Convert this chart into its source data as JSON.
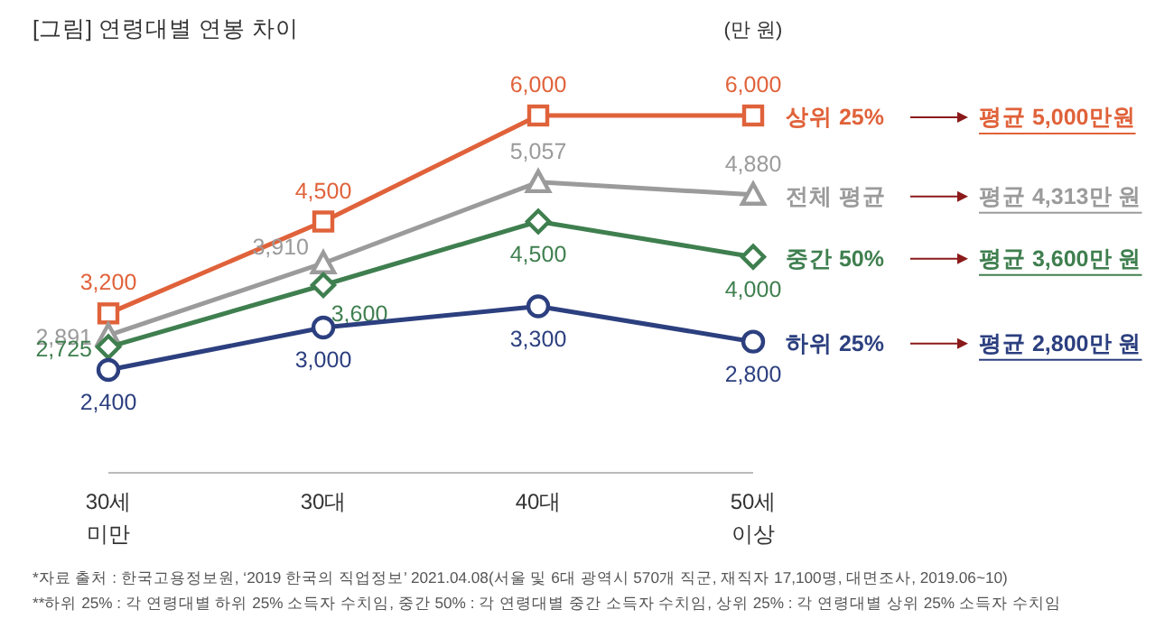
{
  "chart_data": {
    "type": "line",
    "title": "[그림] 연령대별 연봉 차이",
    "ylabel": "(만 원)",
    "categories": [
      "30세 미만",
      "30대",
      "40대",
      "50세 이상"
    ],
    "series": [
      {
        "name": "상위 25%",
        "color": "#e0623a",
        "marker": "square",
        "values": [
          3200,
          4500,
          6000,
          6000
        ],
        "value_labels": [
          "3,200",
          "4,500",
          "6,000",
          "6,000"
        ]
      },
      {
        "name": "전체 평균",
        "color": "#9b9b9b",
        "marker": "triangle",
        "values": [
          2891,
          3910,
          5057,
          4880
        ],
        "value_labels": [
          "2,891",
          "3,910",
          "5,057",
          "4,880"
        ]
      },
      {
        "name": "중간 50%",
        "color": "#3f7f4f",
        "marker": "diamond",
        "values": [
          2725,
          3600,
          4500,
          4000
        ],
        "value_labels": [
          "2,725",
          "3,600",
          "4,500",
          "4,000"
        ]
      },
      {
        "name": "하위 25%",
        "color": "#2c3f7f",
        "marker": "circle",
        "values": [
          2400,
          3000,
          3300,
          2800
        ],
        "value_labels": [
          "2,400",
          "3,000",
          "3,300",
          "2,800"
        ]
      }
    ],
    "grid": false,
    "annotations": [
      "평균 5,000만원",
      "평균 4,313만 원",
      "평균 3,600만 원",
      "평균 2,800만 원",
      "*자료 출처 : 한국고용정보원, ‘2019 한국의 직업정보’ 2021.04.08(서울 및 6대 광역시 570개 직군, 재직자 17,100명, 대면조사, 2019.06~10)",
      "**하위 25% : 각 연령대별 하위 25% 소득자 수치임, 중간 50% : 각 연령대별 중간 소득자 수치임, 상위 25% : 각 연령대별 상위 25% 소득자 수치임"
    ]
  }
}
